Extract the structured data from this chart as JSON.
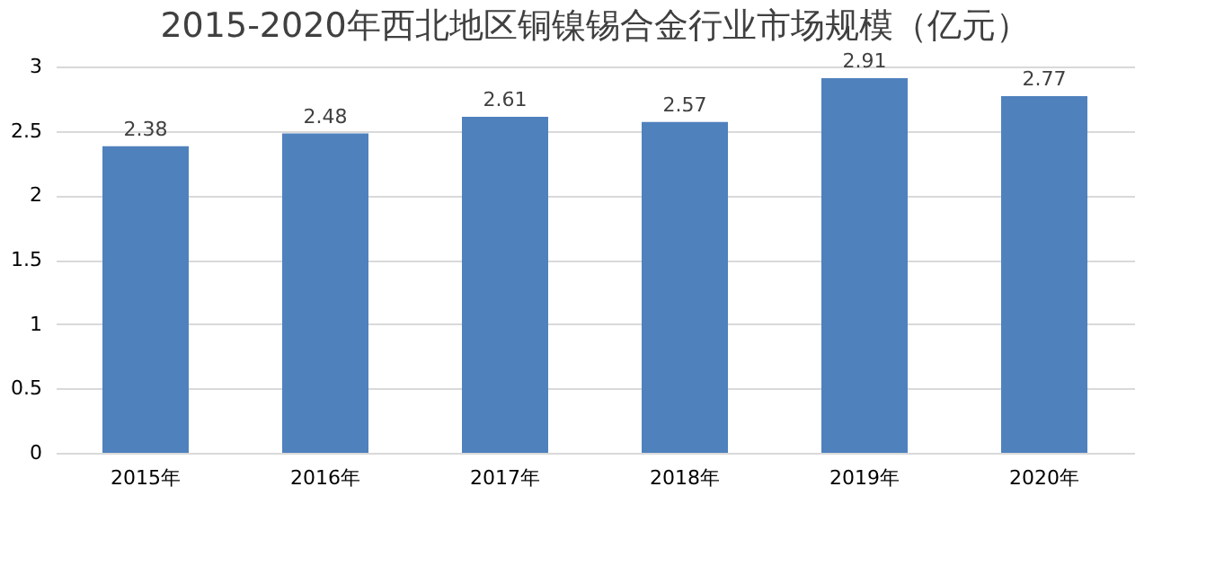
{
  "chart_data": {
    "type": "bar",
    "title": "2015-2020年西北地区铜镍锡合金行业市场规模（亿元）",
    "categories": [
      "2015年",
      "2016年",
      "2017年",
      "2018年",
      "2019年",
      "2020年"
    ],
    "values": [
      2.38,
      2.48,
      2.61,
      2.57,
      2.91,
      2.77
    ],
    "color": "#4f81bd",
    "ylim": [
      0,
      3
    ],
    "yticks": [
      0,
      0.5,
      1,
      1.5,
      2,
      2.5,
      3
    ],
    "grid": "y",
    "data_labels": true
  }
}
